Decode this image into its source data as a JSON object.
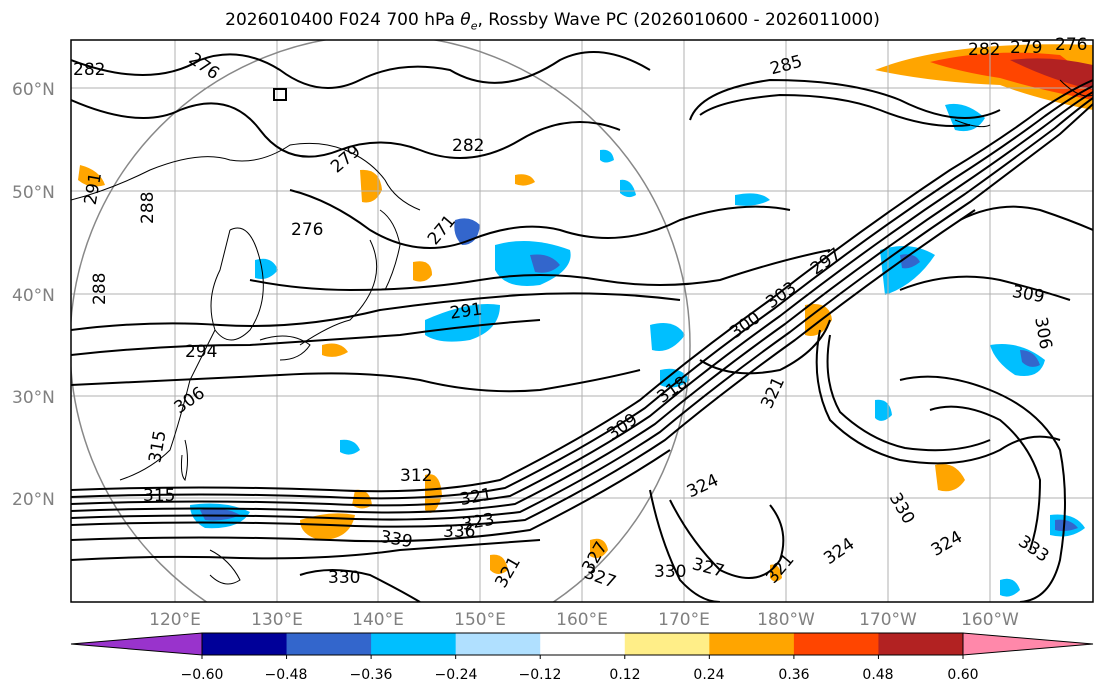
{
  "title": {
    "prefix": "2026010400 F024 700 hPa ",
    "theta": "θ",
    "sub": "e",
    "suffix": ", Rossby Wave PC (2026010600 - 2026011000)"
  },
  "axes": {
    "lat_ticks": [
      "60°N",
      "50°N",
      "40°N",
      "30°N",
      "20°N"
    ],
    "lon_ticks": [
      "120°E",
      "130°E",
      "140°E",
      "150°E",
      "160°E",
      "170°E",
      "180°W",
      "170°W",
      "160°W"
    ]
  },
  "contour_labels": [
    "282",
    "276",
    "282",
    "279",
    "291",
    "288",
    "276",
    "271",
    "288",
    "294",
    "306",
    "291",
    "285",
    "297",
    "300",
    "303",
    "309",
    "306",
    "315",
    "315",
    "312",
    "321",
    "339",
    "336",
    "323",
    "330",
    "330",
    "327",
    "327",
    "324",
    "321",
    "321",
    "324",
    "327",
    "330",
    "324",
    "321",
    "333",
    "318",
    "309",
    "282",
    "279",
    "276",
    "330",
    "324"
  ],
  "colorbar": {
    "colors": [
      "#9933cc",
      "#000099",
      "#3366cc",
      "#00bfff",
      "#b0e0ff",
      "#ffffff",
      "#ffee88",
      "#ffa500",
      "#ff4500",
      "#b22222",
      "#ff88aa"
    ],
    "tick_labels": [
      "−0.60",
      "−0.48",
      "−0.36",
      "−0.24",
      "−0.12",
      "0.12",
      "0.24",
      "0.36",
      "0.48",
      "0.60"
    ]
  }
}
